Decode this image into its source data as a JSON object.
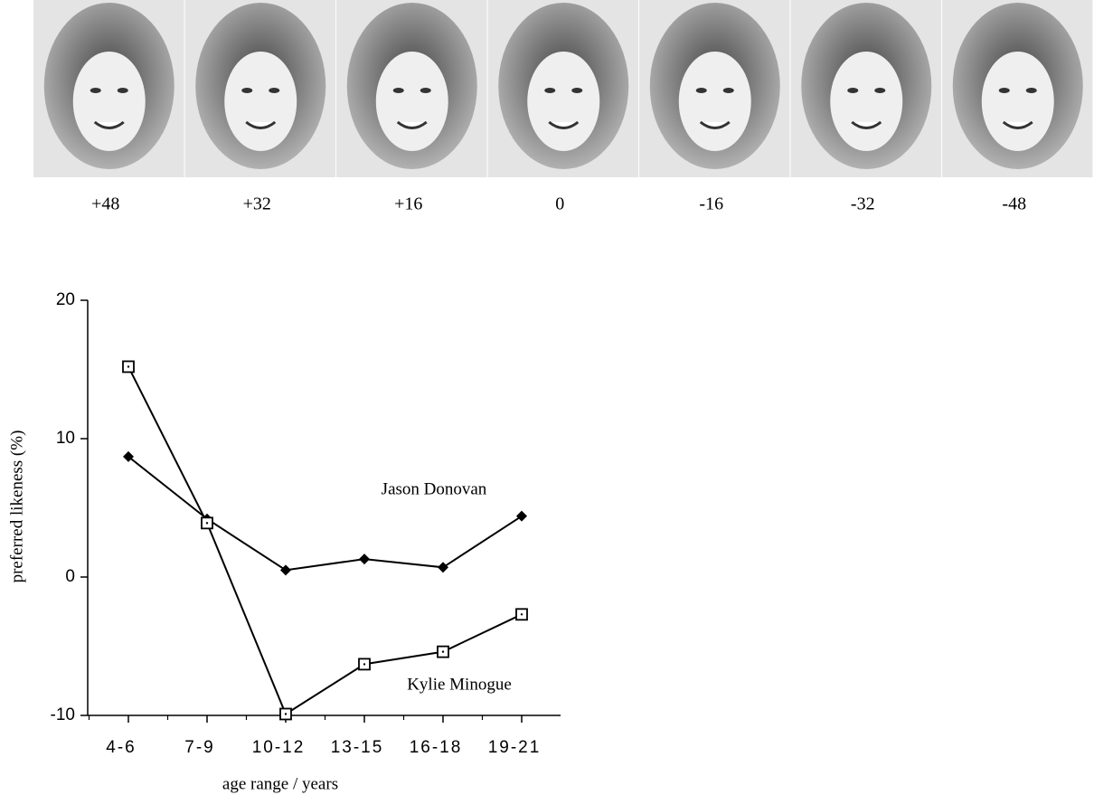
{
  "face_labels": [
    "+48",
    "+32",
    "+16",
    "0",
    "-16",
    "-32",
    "-48"
  ],
  "chart_data": {
    "type": "line",
    "categories": [
      "4-6",
      "7-9",
      "10-12",
      "13-15",
      "16-18",
      "19-21"
    ],
    "series": [
      {
        "name": "Jason Donovan",
        "color": "#000000",
        "marker": "diamond",
        "values": [
          8.7,
          4.2,
          0.5,
          1.3,
          0.7,
          4.4
        ]
      },
      {
        "name": "Kylie Minogue",
        "color": "#000000",
        "marker": "square",
        "values": [
          15.2,
          3.9,
          -9.9,
          -6.3,
          -5.4,
          -2.7
        ]
      }
    ],
    "x_label": "age range / years",
    "y_label": "preferred likeness (%)",
    "ylim": [
      -10,
      20
    ],
    "yticks": [
      -10,
      0,
      10,
      20
    ]
  }
}
